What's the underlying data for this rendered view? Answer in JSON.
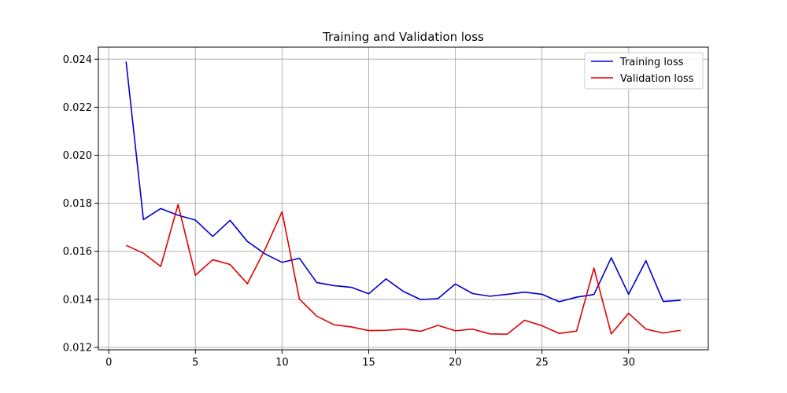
{
  "chart_data": {
    "type": "line",
    "title": "Training and Validation loss",
    "xlabel": "",
    "ylabel": "",
    "xlim": [
      -0.6,
      34.6
    ],
    "ylim": [
      0.0119,
      0.0245
    ],
    "xticks": [
      0,
      5,
      10,
      15,
      20,
      25,
      30
    ],
    "yticks": [
      0.012,
      0.014,
      0.016,
      0.018,
      0.02,
      0.022,
      0.024
    ],
    "ytick_labels": [
      "0.012",
      "0.014",
      "0.016",
      "0.018",
      "0.020",
      "0.022",
      "0.024"
    ],
    "grid": true,
    "legend_position": "top-right",
    "x": [
      1,
      2,
      3,
      4,
      5,
      6,
      7,
      8,
      9,
      10,
      11,
      12,
      13,
      14,
      15,
      16,
      17,
      18,
      19,
      20,
      21,
      22,
      23,
      24,
      25,
      26,
      27,
      28,
      29,
      30,
      31,
      32,
      33
    ],
    "series": [
      {
        "name": "Training loss",
        "color": "#0000cc",
        "values": [
          0.0239,
          0.01732,
          0.01778,
          0.0175,
          0.0173,
          0.01662,
          0.01729,
          0.01641,
          0.0159,
          0.01554,
          0.01571,
          0.0147,
          0.01457,
          0.0145,
          0.01423,
          0.01485,
          0.01433,
          0.01399,
          0.01403,
          0.01464,
          0.01424,
          0.01413,
          0.01421,
          0.0143,
          0.01421,
          0.0139,
          0.01409,
          0.0142,
          0.01573,
          0.01421,
          0.01561,
          0.01391,
          0.01396
        ]
      },
      {
        "name": "Validation loss",
        "color": "#e00000",
        "values": [
          0.01625,
          0.01592,
          0.01537,
          0.01795,
          0.015,
          0.01565,
          0.01545,
          0.01465,
          0.01605,
          0.01765,
          0.01401,
          0.0133,
          0.01294,
          0.01285,
          0.0127,
          0.01271,
          0.01276,
          0.01267,
          0.01292,
          0.01269,
          0.01276,
          0.01256,
          0.01255,
          0.01313,
          0.0129,
          0.01258,
          0.01268,
          0.0153,
          0.01256,
          0.01342,
          0.01276,
          0.0126,
          0.01271
        ]
      }
    ]
  }
}
